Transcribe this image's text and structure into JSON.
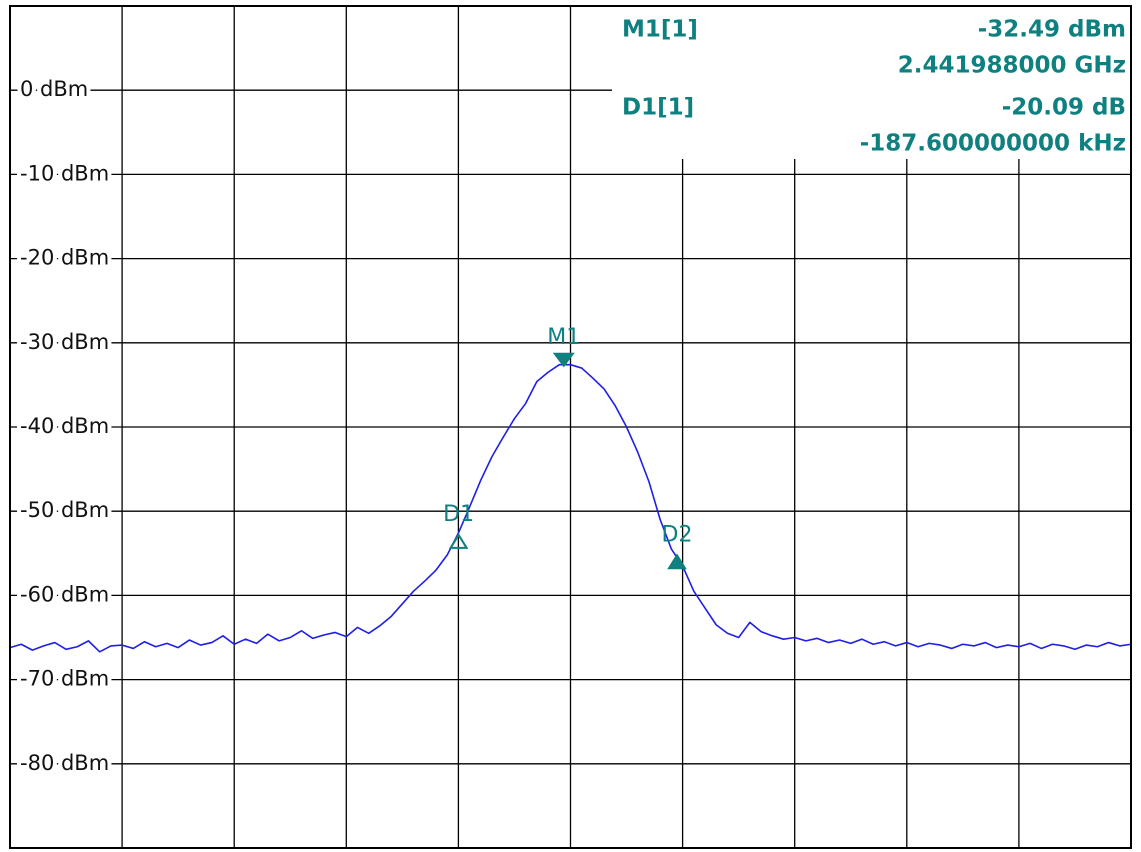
{
  "chart_data": {
    "type": "line",
    "xlim": [
      2.441,
      2.443
    ],
    "ylim": [
      -90,
      10
    ],
    "yticks": [
      {
        "value": 0,
        "label": "0 dBm"
      },
      {
        "value": -10,
        "label": "-10 dBm"
      },
      {
        "value": -20,
        "label": "-20 dBm"
      },
      {
        "value": -30,
        "label": "-30 dBm"
      },
      {
        "value": -40,
        "label": "-40 dBm"
      },
      {
        "value": -50,
        "label": "-50 dBm"
      },
      {
        "value": -60,
        "label": "-60 dBm"
      },
      {
        "value": -70,
        "label": "-70 dBm"
      },
      {
        "value": -80,
        "label": "-80 dBm"
      }
    ],
    "grid": true,
    "x": [
      2.441,
      2.44102,
      2.44104,
      2.44106,
      2.44108,
      2.4411,
      2.44112,
      2.44114,
      2.44116,
      2.44118,
      2.4412,
      2.44122,
      2.44124,
      2.44126,
      2.44128,
      2.4413,
      2.44132,
      2.44134,
      2.44136,
      2.44138,
      2.4414,
      2.44142,
      2.44144,
      2.44146,
      2.44148,
      2.4415,
      2.44152,
      2.44154,
      2.44156,
      2.44158,
      2.4416,
      2.44162,
      2.44164,
      2.44166,
      2.44168,
      2.4417,
      2.44172,
      2.44174,
      2.44176,
      2.44178,
      2.4418,
      2.44182,
      2.44184,
      2.44186,
      2.44188,
      2.4419,
      2.44192,
      2.44194,
      2.44196,
      2.44198,
      2.442,
      2.44202,
      2.44204,
      2.44206,
      2.44208,
      2.4421,
      2.44212,
      2.44214,
      2.44216,
      2.44218,
      2.4422,
      2.44222,
      2.44224,
      2.44226,
      2.44228,
      2.4423,
      2.44232,
      2.44234,
      2.44236,
      2.44238,
      2.4424,
      2.44242,
      2.44244,
      2.44246,
      2.44248,
      2.4425,
      2.44252,
      2.44254,
      2.44256,
      2.44258,
      2.4426,
      2.44262,
      2.44264,
      2.44266,
      2.44268,
      2.4427,
      2.44272,
      2.44274,
      2.44276,
      2.44278,
      2.4428,
      2.44282,
      2.44284,
      2.44286,
      2.44288,
      2.4429,
      2.44292,
      2.44294,
      2.44296,
      2.44298,
      2.443
    ],
    "series": [
      {
        "color": "#1f1fe6",
        "values": [
          -66.2,
          -65.8,
          -66.5,
          -66.0,
          -65.6,
          -66.4,
          -66.1,
          -65.4,
          -66.7,
          -66.0,
          -65.9,
          -66.3,
          -65.5,
          -66.1,
          -65.7,
          -66.2,
          -65.3,
          -65.9,
          -65.6,
          -64.8,
          -65.8,
          -65.2,
          -65.7,
          -64.6,
          -65.4,
          -65.0,
          -64.2,
          -65.1,
          -64.7,
          -64.4,
          -64.9,
          -63.8,
          -64.5,
          -63.6,
          -62.5,
          -61.0,
          -59.5,
          -58.3,
          -57.0,
          -55.2,
          -52.6,
          -49.5,
          -46.3,
          -43.5,
          -41.2,
          -39.0,
          -37.2,
          -34.6,
          -33.5,
          -32.6,
          -32.6,
          -33.0,
          -34.2,
          -35.5,
          -37.5,
          -40.0,
          -43.0,
          -46.5,
          -51.0,
          -54.5,
          -56.5,
          -59.5,
          -61.5,
          -63.5,
          -64.5,
          -65.0,
          -63.2,
          -64.3,
          -64.8,
          -65.2,
          -65.0,
          -65.4,
          -65.1,
          -65.6,
          -65.3,
          -65.7,
          -65.2,
          -65.8,
          -65.5,
          -66.0,
          -65.6,
          -66.1,
          -65.7,
          -65.9,
          -66.3,
          -65.8,
          -66.0,
          -65.6,
          -66.2,
          -65.9,
          -66.1,
          -65.7,
          -66.3,
          -65.8,
          -66.0,
          -66.4,
          -65.9,
          -66.1,
          -65.6,
          -66.0,
          -65.8
        ]
      }
    ],
    "markers": [
      {
        "label": "M1",
        "x": 2.441988,
        "y": -32.49,
        "shape": "down"
      },
      {
        "label": "D1",
        "x": 2.4418004,
        "y": -52.58,
        "shape": "up-hollow"
      },
      {
        "label": "D2",
        "x": 2.44219,
        "y": -55,
        "shape": "up"
      }
    ],
    "marker_color": "#0e8080",
    "readout": [
      {
        "name": "M1[1]",
        "value": "-32.49 dBm",
        "extra": "2.441988000 GHz"
      },
      {
        "name": "D1[1]",
        "value": "-20.09 dB",
        "extra": "-187.600000000 kHz"
      }
    ]
  }
}
